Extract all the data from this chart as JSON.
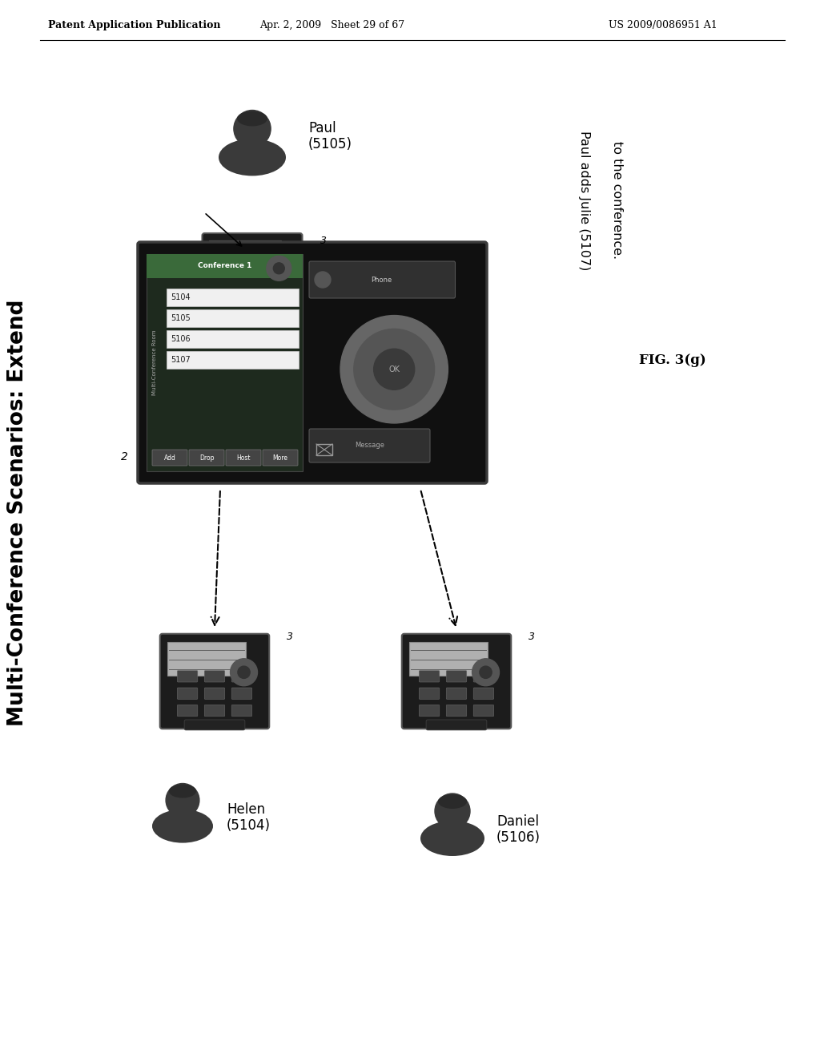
{
  "bg_color": "#ffffff",
  "header_left": "Patent Application Publication",
  "header_center": "Apr. 2, 2009   Sheet 29 of 67",
  "header_right": "US 2009/0086951 A1",
  "sidebar_title": "Multi-Conference Scenarios: Extend",
  "fig_label": "FIG. 3(g)",
  "annotation_line1": "Paul adds Julie (5107)",
  "annotation_line2": "to the conference.",
  "paul_label": "Paul\n(5105)",
  "helen_label": "Helen\n(5104)",
  "daniel_label": "Daniel\n(5106)",
  "phone_numbers": [
    "5104",
    "5105",
    "5106",
    "5107"
  ],
  "conference_label": "Conference 1",
  "room_label": "Multi-Conference Room",
  "btn_labels": [
    "Add",
    "Drop",
    "Host",
    "More"
  ],
  "ref_num_paul": "3",
  "ref_num_helen": "3",
  "ref_num_daniel": "3",
  "ref_num_main": "2"
}
